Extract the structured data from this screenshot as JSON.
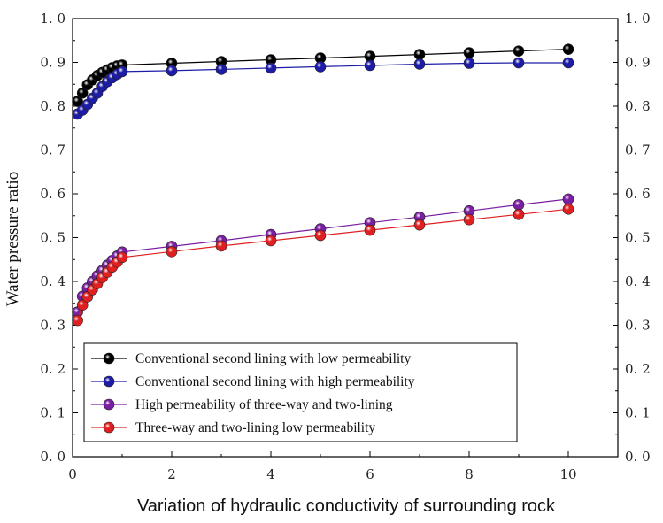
{
  "chart_data": {
    "type": "line",
    "xlabel": "Variation of hydraulic conductivity of surrounding rock",
    "ylabel": "Water pressure ratio",
    "xlim": [
      0,
      11
    ],
    "ylim": [
      0.0,
      1.0
    ],
    "x_ticks": [
      0,
      2,
      4,
      6,
      8,
      10
    ],
    "x_tick_labels": [
      "0",
      "2",
      "4",
      "6",
      "8",
      "10"
    ],
    "y_ticks": [
      0.0,
      0.1,
      0.2,
      0.3,
      0.4,
      0.5,
      0.6,
      0.7,
      0.8,
      0.9,
      1.0
    ],
    "y_tick_labels": [
      "0. 0",
      "0. 1",
      "0. 2",
      "0. 3",
      "0. 4",
      "0. 5",
      "0. 6",
      "0. 7",
      "0. 8",
      "0. 9",
      "1. 0"
    ],
    "right_axis_mirrored": true,
    "grid": false,
    "legend_position": "bottom-left",
    "x": [
      0.1,
      0.2,
      0.3,
      0.4,
      0.5,
      0.6,
      0.7,
      0.8,
      0.9,
      1,
      2,
      3,
      4,
      5,
      6,
      7,
      8,
      9,
      10
    ],
    "series": [
      {
        "name": "Conventional second lining with low permeability",
        "color": "#000000",
        "values": [
          0.811,
          0.83,
          0.849,
          0.86,
          0.87,
          0.877,
          0.883,
          0.888,
          0.892,
          0.894,
          0.898,
          0.902,
          0.906,
          0.91,
          0.914,
          0.918,
          0.922,
          0.926,
          0.93
        ]
      },
      {
        "name": "Conventional second lining with high permeability",
        "color": "#1c1ca6",
        "values": [
          0.782,
          0.791,
          0.804,
          0.818,
          0.83,
          0.845,
          0.856,
          0.865,
          0.873,
          0.879,
          0.881,
          0.884,
          0.887,
          0.89,
          0.893,
          0.896,
          0.898,
          0.899,
          0.899
        ]
      },
      {
        "name": "High permeability of three-way and two-lining",
        "color": "#7b1fa2",
        "values": [
          0.33,
          0.366,
          0.385,
          0.4,
          0.413,
          0.425,
          0.437,
          0.448,
          0.458,
          0.467,
          0.48,
          0.493,
          0.507,
          0.52,
          0.534,
          0.547,
          0.561,
          0.575,
          0.588
        ]
      },
      {
        "name": "Three-way and two-lining low permeability",
        "color": "#e02020",
        "values": [
          0.311,
          0.346,
          0.365,
          0.381,
          0.395,
          0.409,
          0.421,
          0.433,
          0.444,
          0.455,
          0.468,
          0.481,
          0.493,
          0.505,
          0.517,
          0.529,
          0.541,
          0.553,
          0.565
        ]
      }
    ]
  }
}
